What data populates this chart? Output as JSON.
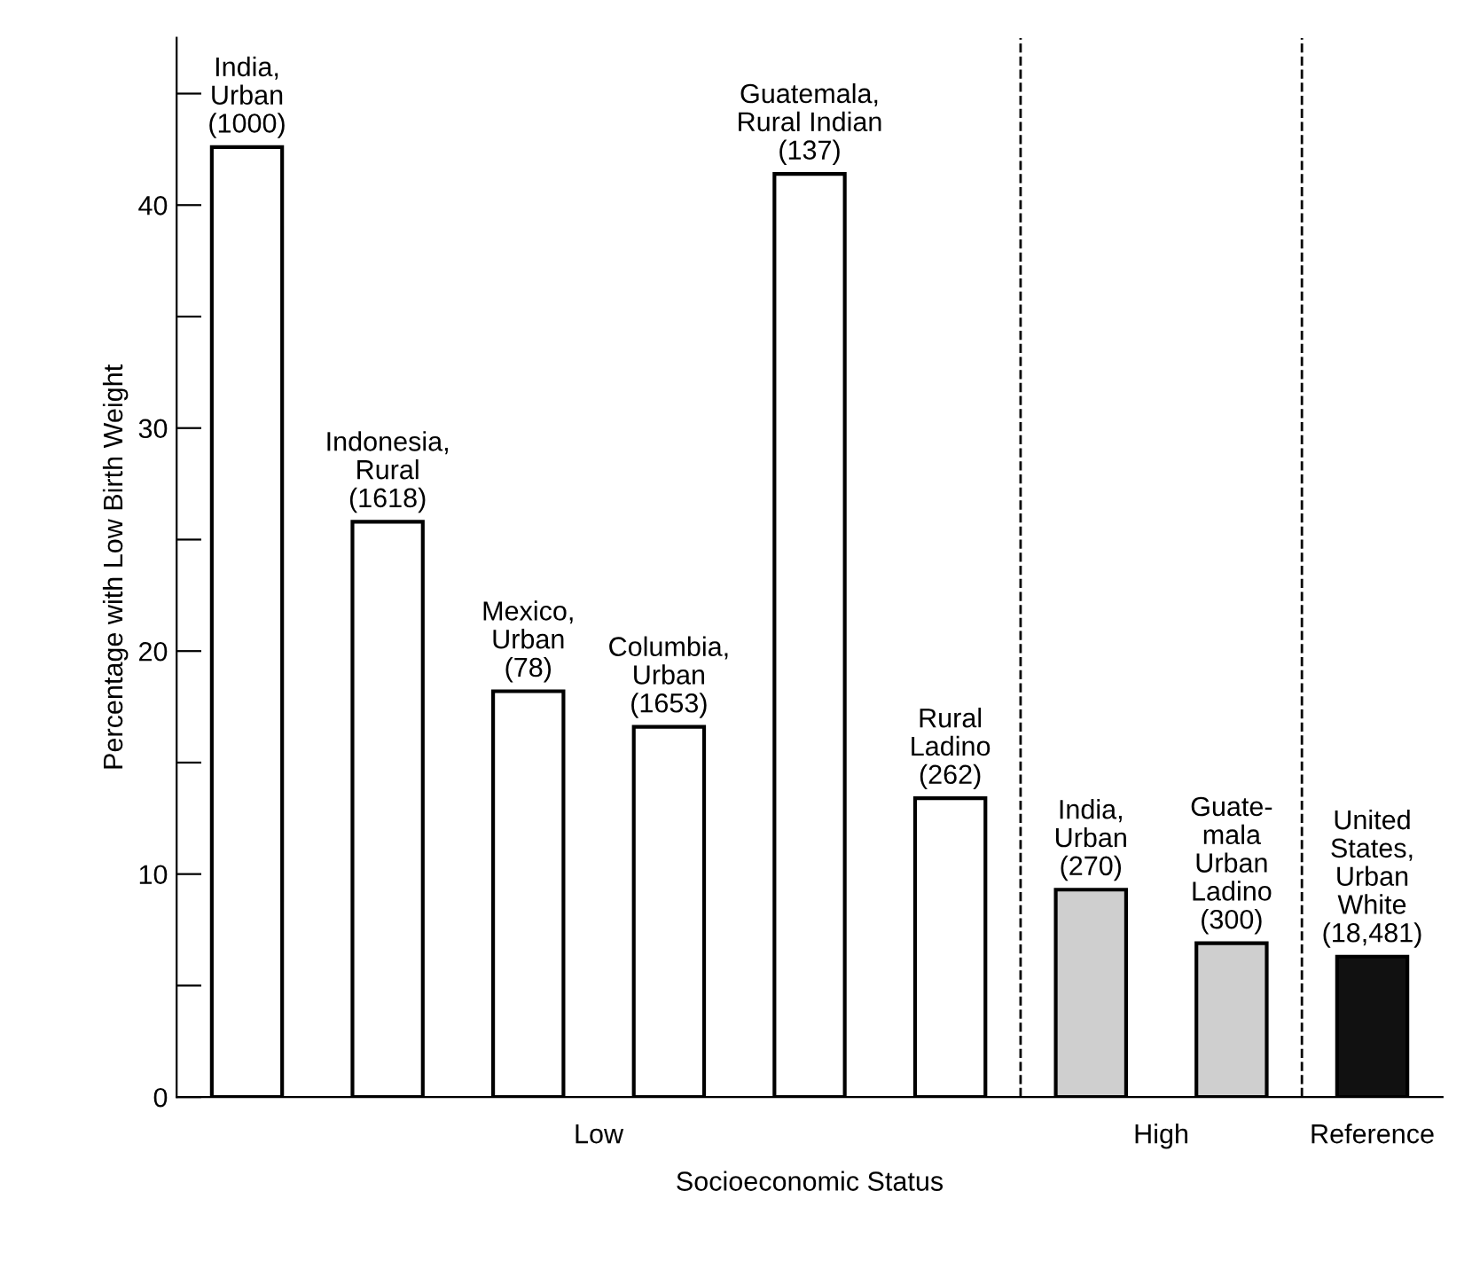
{
  "chart_data": {
    "type": "bar",
    "categories": [
      "India,\nUrban\n(1000)",
      "Indonesia,\nRural\n(1618)",
      "Mexico,\nUrban\n(78)",
      "Columbia,\nUrban\n(1653)",
      "Guatemala,\nRural Indian\n(137)",
      "Rural\nLadino\n(262)",
      "India,\nUrban\n(270)",
      "Guate-\nmala\nUrban\nLadino\n(300)",
      "United\nStates,\nUrban\nWhite\n(18,481)"
    ],
    "values": [
      42.6,
      25.8,
      18.2,
      16.6,
      41.4,
      13.4,
      9.3,
      6.9,
      6.3
    ],
    "colors": [
      "#ffffff",
      "#ffffff",
      "#ffffff",
      "#ffffff",
      "#ffffff",
      "#ffffff",
      "#cfcfcf",
      "#cfcfcf",
      "#111111"
    ],
    "ylabel": "Percentage with Low Birth Weight",
    "xlabel": "Socioeconomic Status",
    "ylim": [
      0,
      47.5
    ],
    "yticks": [
      0,
      {
        "value": 5,
        "label": null
      },
      10,
      {
        "value": 15,
        "label": null
      },
      20,
      {
        "value": 25,
        "label": null
      },
      30,
      {
        "value": 35,
        "label": null
      },
      40,
      {
        "value": 45,
        "label": null
      }
    ],
    "annotations": [
      "Low",
      "High",
      "Reference"
    ],
    "tick_labels": "y",
    "grid": false
  }
}
